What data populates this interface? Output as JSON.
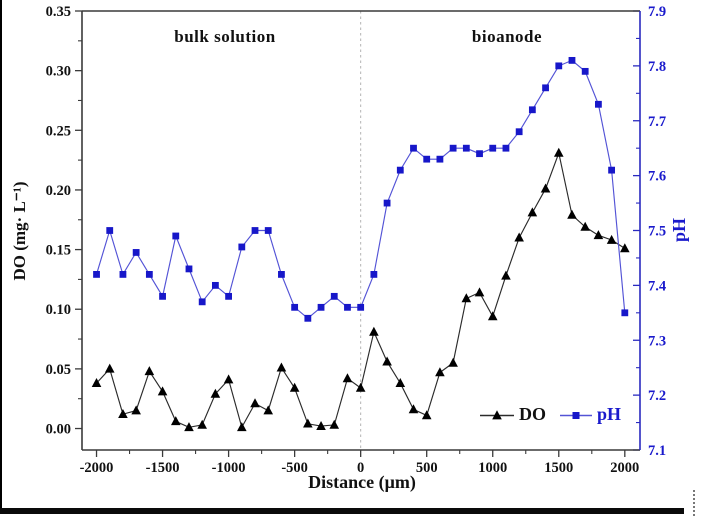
{
  "figure": {
    "region_labels": {
      "left": "bulk solution",
      "right": "bioanode"
    }
  },
  "chart_data": {
    "type": "line",
    "title": "",
    "xlabel": "Distance (μm)",
    "ylabel_left": "DO (mg· L⁻¹)",
    "ylabel_right": "pH",
    "grid": false,
    "legend_position": "inside-bottom-right",
    "divider_x": 0,
    "x": [
      -2000,
      -1900,
      -1800,
      -1700,
      -1600,
      -1500,
      -1400,
      -1300,
      -1200,
      -1100,
      -1000,
      -900,
      -800,
      -700,
      -600,
      -500,
      -400,
      -300,
      -200,
      -100,
      0,
      100,
      200,
      300,
      400,
      500,
      600,
      700,
      800,
      900,
      1000,
      1100,
      1200,
      1300,
      1400,
      1500,
      1600,
      1700,
      1800,
      1900,
      2000
    ],
    "series": [
      {
        "name": "DO",
        "axis": "left",
        "marker": "triangle",
        "color": "#000000",
        "line_color": "#2b2b2b",
        "values": [
          0.038,
          0.05,
          0.012,
          0.015,
          0.048,
          0.031,
          0.006,
          0.001,
          0.003,
          0.029,
          0.041,
          0.001,
          0.021,
          0.015,
          0.051,
          0.034,
          0.004,
          0.002,
          0.003,
          0.042,
          0.034,
          0.081,
          0.056,
          0.038,
          0.016,
          0.011,
          0.047,
          0.055,
          0.109,
          0.114,
          0.094,
          0.128,
          0.16,
          0.181,
          0.201,
          0.231,
          0.179,
          0.169,
          0.162,
          0.158,
          0.151
        ]
      },
      {
        "name": "pH",
        "axis": "right",
        "marker": "square",
        "color": "#1717c9",
        "line_color": "#5353d6",
        "values": [
          7.42,
          7.5,
          7.42,
          7.46,
          7.42,
          7.38,
          7.49,
          7.43,
          7.37,
          7.4,
          7.38,
          7.47,
          7.5,
          7.5,
          7.42,
          7.36,
          7.34,
          7.36,
          7.38,
          7.36,
          7.36,
          7.42,
          7.55,
          7.61,
          7.65,
          7.63,
          7.63,
          7.65,
          7.65,
          7.64,
          7.65,
          7.65,
          7.68,
          7.72,
          7.76,
          7.8,
          7.81,
          7.79,
          7.73,
          7.61,
          7.35
        ]
      }
    ],
    "x_axis": {
      "tick_labels": [
        "-2000",
        "-1500",
        "-1000",
        "-500",
        "0",
        "500",
        "1000",
        "1500",
        "2000"
      ],
      "tick_values": [
        -2000,
        -1500,
        -1000,
        -500,
        0,
        500,
        1000,
        1500,
        2000
      ],
      "range": [
        -2110,
        2115
      ],
      "minor_step": 250
    },
    "left_axis": {
      "tick_labels": [
        "0.35",
        "0.30",
        "0.25",
        "0.20",
        "0.15",
        "0.10",
        "0.05",
        "0.00"
      ],
      "tick_values": [
        0.35,
        0.3,
        0.25,
        0.2,
        0.15,
        0.1,
        0.05,
        0.0
      ],
      "range": [
        -0.018,
        0.35
      ],
      "color": "#111111"
    },
    "right_axis": {
      "tick_labels": [
        "7.9",
        "7.8",
        "7.7",
        "7.6",
        "7.5",
        "7.4",
        "7.3",
        "7.2",
        "7.1"
      ],
      "tick_values": [
        7.9,
        7.8,
        7.7,
        7.6,
        7.5,
        7.4,
        7.3,
        7.2,
        7.1
      ],
      "range": [
        7.1,
        7.9
      ],
      "color": "#1a1acc"
    },
    "colors": {
      "frame": "#3a3a3a",
      "right_frame": "#2a2ac0",
      "divider": "#b3b3b3"
    }
  }
}
